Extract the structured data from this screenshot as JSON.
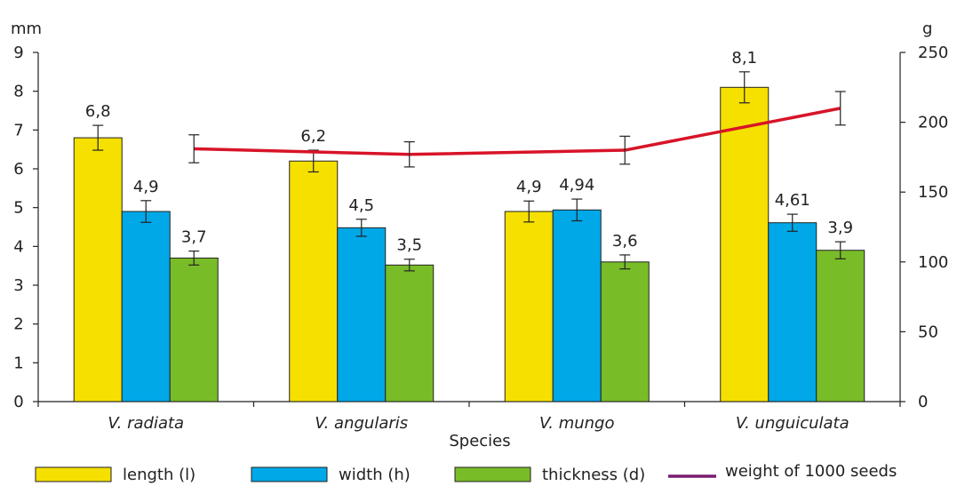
{
  "chart_data": {
    "type": "bar",
    "xlabel": "Species",
    "ylabel_left": "mm",
    "ylabel_right": "g",
    "ylim_left": [
      0,
      9
    ],
    "ylim_right": [
      0,
      250
    ],
    "yticks_left": [
      0,
      1,
      2,
      3,
      4,
      5,
      6,
      7,
      8,
      9
    ],
    "yticks_right": [
      0,
      50,
      100,
      150,
      200,
      250
    ],
    "categories": [
      "V. radiata",
      "V. angularis",
      "V. mungo",
      "V. unguiculata"
    ],
    "series": [
      {
        "name": "length (l)",
        "axis": "left",
        "color": "#f5e000",
        "values": [
          6.8,
          6.2,
          4.9,
          8.1
        ],
        "errors": [
          0.32,
          0.28,
          0.27,
          0.4
        ],
        "labels": [
          "6,8",
          "6,2",
          "4,9",
          "8,1"
        ]
      },
      {
        "name": "width (h)",
        "axis": "left",
        "color": "#00a8e8",
        "values": [
          4.9,
          4.48,
          4.94,
          4.61
        ],
        "errors": [
          0.28,
          0.22,
          0.28,
          0.22
        ],
        "labels": [
          "4,9",
          "4,5",
          "4,94",
          "4,61"
        ]
      },
      {
        "name": "thickness (d)",
        "axis": "left",
        "color": "#78bc28",
        "values": [
          3.7,
          3.52,
          3.6,
          3.9
        ],
        "errors": [
          0.18,
          0.15,
          0.18,
          0.22
        ],
        "labels": [
          "3,7",
          "3,5",
          "3,6",
          "3,9"
        ]
      }
    ],
    "line_series": {
      "name": "weight of 1000 seeds",
      "axis": "right",
      "color": "#d81428",
      "values": [
        181,
        177,
        180,
        210
      ],
      "errors": [
        10,
        9,
        10,
        12
      ]
    },
    "legend_position": "bottom",
    "grid": false
  }
}
